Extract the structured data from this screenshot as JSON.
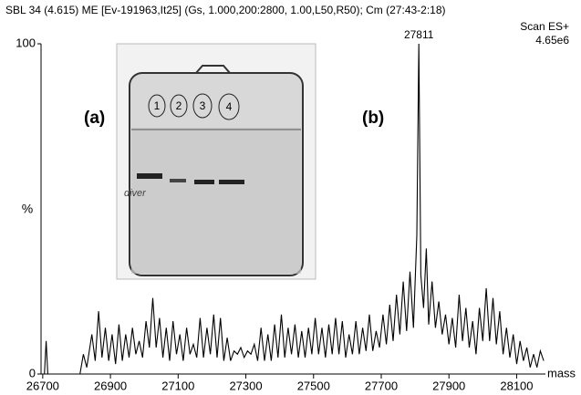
{
  "chart_data": {
    "type": "line",
    "title": "SBL  34 (4.615) ME [Ev-191963,It25] (Gs, 1.000,200:2800, 1.00,L50,R50); Cm (27:43-2:18)",
    "scan_mode": "Scan ES+",
    "intensity": "4.65e6",
    "x_label": "mass",
    "y_label": "%",
    "annotations": [
      "(a)",
      "(b)"
    ],
    "inset": {
      "lanes": [
        "1",
        "2",
        "3",
        "4"
      ],
      "note": "diver"
    },
    "color": "#000000",
    "xlim": [
      26695,
      28185
    ],
    "xticks": [
      26700,
      26900,
      27100,
      27300,
      27500,
      27700,
      27900,
      28100
    ],
    "ylim": [
      0,
      100
    ],
    "yticks": [
      0,
      100
    ],
    "x": [
      26705,
      26710,
      26715,
      26810,
      26820,
      26830,
      26845,
      26855,
      26865,
      26875,
      26885,
      26895,
      26905,
      26915,
      26925,
      26935,
      26945,
      26955,
      26965,
      26975,
      26985,
      26995,
      27005,
      27015,
      27025,
      27035,
      27045,
      27055,
      27065,
      27075,
      27085,
      27095,
      27105,
      27115,
      27125,
      27135,
      27145,
      27155,
      27165,
      27175,
      27185,
      27195,
      27205,
      27215,
      27225,
      27235,
      27245,
      27255,
      27265,
      27275,
      27285,
      27295,
      27305,
      27315,
      27325,
      27335,
      27345,
      27355,
      27365,
      27375,
      27385,
      27395,
      27405,
      27415,
      27425,
      27435,
      27445,
      27455,
      27465,
      27475,
      27485,
      27495,
      27505,
      27515,
      27525,
      27535,
      27545,
      27555,
      27565,
      27575,
      27585,
      27595,
      27605,
      27615,
      27625,
      27635,
      27645,
      27655,
      27665,
      27675,
      27685,
      27695,
      27705,
      27715,
      27725,
      27735,
      27745,
      27755,
      27765,
      27775,
      27785,
      27795,
      27805,
      27811,
      27817,
      27825,
      27833,
      27840,
      27850,
      27860,
      27870,
      27880,
      27890,
      27900,
      27910,
      27920,
      27930,
      27940,
      27950,
      27960,
      27970,
      27980,
      27990,
      28000,
      28010,
      28020,
      28030,
      28040,
      28050,
      28060,
      28070,
      28080,
      28090,
      28100,
      28110,
      28120,
      28130,
      28140,
      28150,
      28160,
      28170,
      28180
    ],
    "values": [
      0,
      10,
      0,
      0,
      6,
      2,
      12,
      4,
      19,
      5,
      14,
      4,
      12,
      3,
      15,
      4,
      12,
      5,
      14,
      6,
      10,
      5,
      16,
      8,
      23,
      8,
      17,
      5,
      14,
      4,
      16,
      6,
      12,
      4,
      14,
      6,
      9,
      5,
      17,
      5,
      14,
      6,
      18,
      5,
      17,
      4,
      11,
      4,
      7,
      6,
      8,
      5,
      7,
      6,
      9,
      4,
      14,
      4,
      12,
      4,
      15,
      5,
      18,
      5,
      14,
      6,
      15,
      5,
      13,
      5,
      14,
      6,
      17,
      6,
      14,
      5,
      15,
      6,
      17,
      6,
      16,
      5,
      12,
      6,
      16,
      6,
      14,
      7,
      18,
      7,
      13,
      8,
      18,
      9,
      21,
      10,
      24,
      12,
      28,
      13,
      31,
      14,
      42,
      100,
      30,
      20,
      38,
      15,
      28,
      14,
      22,
      12,
      18,
      9,
      17,
      8,
      24,
      10,
      20,
      8,
      16,
      6,
      20,
      10,
      26,
      10,
      23,
      9,
      19,
      6,
      14,
      5,
      12,
      3,
      10,
      4,
      8,
      2,
      6,
      2,
      7,
      4
    ]
  }
}
